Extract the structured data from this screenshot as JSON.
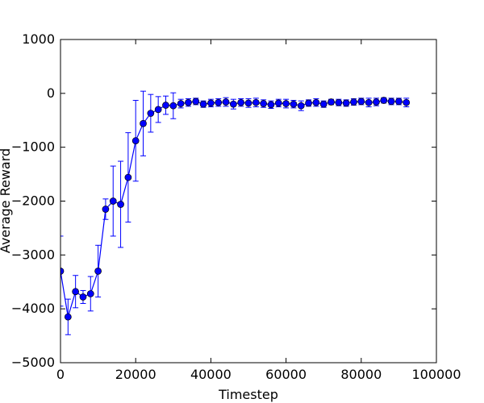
{
  "chart_data": {
    "type": "line",
    "xlabel": "Timestep",
    "ylabel": "Average Reward",
    "xlim": [
      0,
      100000
    ],
    "ylim": [
      -5000,
      1000
    ],
    "grid": false,
    "x_ticks": [
      0,
      20000,
      40000,
      60000,
      80000,
      100000
    ],
    "y_ticks": [
      -5000,
      -4000,
      -3000,
      -2000,
      -1000,
      0,
      1000
    ],
    "x_tick_labels": [
      "0",
      "20000",
      "40000",
      "60000",
      "80000",
      "100000"
    ],
    "y_tick_labels": [
      "−5000",
      "−4000",
      "−3000",
      "−2000",
      "−1000",
      "0",
      "1000"
    ],
    "series": [
      {
        "color": "#0000ff",
        "x": [
          0,
          2000,
          4000,
          6000,
          8000,
          10000,
          12000,
          14000,
          16000,
          18000,
          20000,
          22000,
          24000,
          26000,
          28000,
          30000,
          32000,
          34000,
          36000,
          38000,
          40000,
          42000,
          44000,
          46000,
          48000,
          50000,
          52000,
          54000,
          56000,
          58000,
          60000,
          62000,
          64000,
          66000,
          68000,
          70000,
          72000,
          74000,
          76000,
          78000,
          80000,
          82000,
          84000,
          86000,
          88000,
          90000,
          92000
        ],
        "y": [
          -3300,
          -4150,
          -3680,
          -3780,
          -3720,
          -3300,
          -2150,
          -2000,
          -2060,
          -1560,
          -880,
          -560,
          -370,
          -300,
          -220,
          -230,
          -190,
          -170,
          -150,
          -200,
          -180,
          -170,
          -160,
          -200,
          -170,
          -180,
          -170,
          -190,
          -210,
          -180,
          -190,
          -200,
          -230,
          -180,
          -170,
          -200,
          -160,
          -170,
          -180,
          -160,
          -150,
          -170,
          -160,
          -130,
          -150,
          -150,
          -170
        ],
        "error": [
          650,
          330,
          300,
          120,
          320,
          480,
          190,
          650,
          800,
          830,
          750,
          600,
          350,
          240,
          170,
          240,
          80,
          70,
          60,
          60,
          70,
          70,
          80,
          90,
          70,
          80,
          80,
          70,
          70,
          70,
          80,
          70,
          90,
          60,
          70,
          60,
          50,
          60,
          60,
          60,
          60,
          80,
          70,
          50,
          60,
          60,
          80
        ]
      }
    ]
  }
}
